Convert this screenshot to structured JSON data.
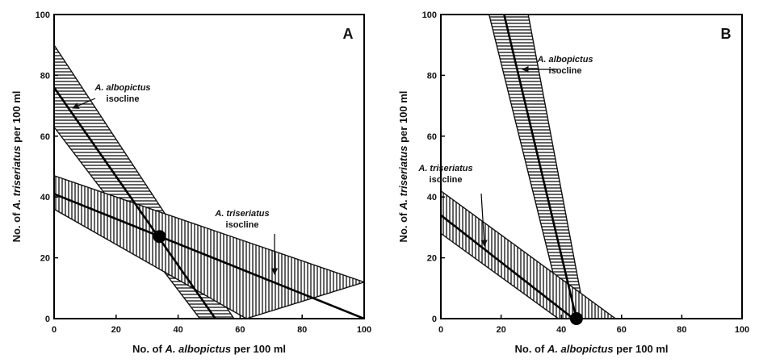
{
  "chart_data": [
    {
      "type": "line",
      "panel_label": "A",
      "xlabel": {
        "pre": "No. of ",
        "species": "A. albopictus",
        "post": " per 100 ml"
      },
      "ylabel": {
        "pre": "No. of ",
        "species": "A. triseriatus",
        "post": " per 100 ml"
      },
      "xlim": [
        0,
        100
      ],
      "ylim": [
        0,
        100
      ],
      "xticks": [
        "0",
        "20",
        "40",
        "60",
        "80",
        "100"
      ],
      "yticks": [
        "0",
        "20",
        "40",
        "60",
        "80",
        "100"
      ],
      "series": [
        {
          "name": "A. albopictus isocline",
          "fill": "horizontal-hatch",
          "line": [
            [
              0,
              76
            ],
            [
              52,
              0
            ]
          ],
          "band_upper": [
            [
              0,
              90
            ],
            [
              58,
              0
            ]
          ],
          "band_lower": [
            [
              0,
              63
            ],
            [
              47,
              0
            ]
          ]
        },
        {
          "name": "A. triseriatus isocline",
          "fill": "vertical-hatch",
          "line": [
            [
              0,
              41
            ],
            [
              100,
              0
            ]
          ],
          "band_upper": [
            [
              0,
              47
            ],
            [
              100,
              12
            ]
          ],
          "band_lower": [
            [
              0,
              36
            ],
            [
              62,
              0
            ]
          ]
        }
      ],
      "equilibrium_point": {
        "x": 34,
        "y": 27
      },
      "annotations": [
        {
          "lines": [
            "A. albopictus",
            "isocline"
          ],
          "points_to": [
            6,
            67
          ]
        },
        {
          "lines": [
            "A. triseriatus",
            "isocline"
          ],
          "points_to": [
            72,
            14
          ]
        }
      ]
    },
    {
      "type": "line",
      "panel_label": "B",
      "xlabel": {
        "pre": "No. of ",
        "species": "A. albopictus",
        "post": " per 100 ml"
      },
      "ylabel": {
        "pre": "No. of ",
        "species": "A. triseriatus",
        "post": " per 100 ml"
      },
      "xlim": [
        0,
        100
      ],
      "ylim": [
        0,
        100
      ],
      "xticks": [
        "0",
        "20",
        "40",
        "60",
        "80",
        "100"
      ],
      "yticks": [
        "0",
        "20",
        "40",
        "60",
        "80",
        "100"
      ],
      "series": [
        {
          "name": "A. albopictus isocline",
          "fill": "horizontal-hatch",
          "line": [
            [
              21,
              100
            ],
            [
              45,
              0
            ]
          ],
          "band_upper": [
            [
              29,
              100
            ],
            [
              48,
              0
            ]
          ],
          "band_lower": [
            [
              16,
              100
            ],
            [
              41,
              0
            ]
          ]
        },
        {
          "name": "A. triseriatus isocline",
          "fill": "vertical-hatch",
          "line": [
            [
              0,
              34
            ],
            [
              44,
              0
            ]
          ],
          "band_upper": [
            [
              0,
              42
            ],
            [
              58,
              0
            ]
          ],
          "band_lower": [
            [
              0,
              28
            ],
            [
              39,
              0
            ]
          ]
        }
      ],
      "equilibrium_point": {
        "x": 45,
        "y": 0
      },
      "annotations": [
        {
          "lines": [
            "A. albopictus",
            "isocline"
          ],
          "points_to": [
            30,
            80
          ]
        },
        {
          "lines": [
            "A. triseriatus",
            "isocline"
          ],
          "points_to": [
            15,
            24
          ]
        }
      ]
    }
  ]
}
